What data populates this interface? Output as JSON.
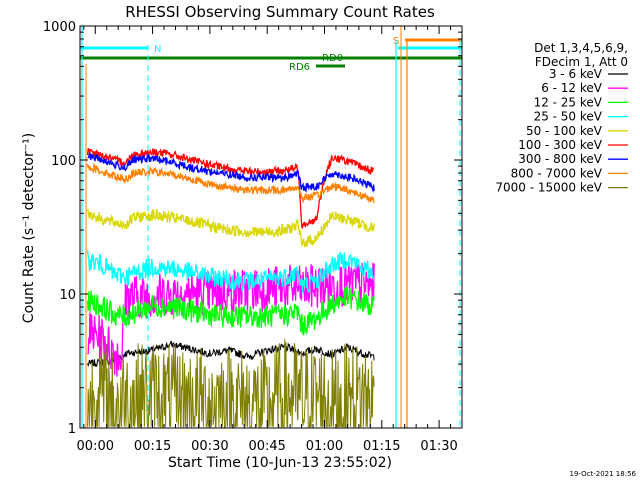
{
  "chart_data": {
    "type": "line",
    "title": "RHESSI Observing Summary Count Rates",
    "xlabel": "Start Time (10-Jun-13 23:55:02)",
    "ylabel": "Count Rate (s⁻¹ detector⁻¹)",
    "y_scale": "log",
    "ylim": [
      1,
      1000
    ],
    "xlim_minutes": [
      -4,
      96
    ],
    "y_ticks": [
      "1",
      "10",
      "100",
      "1000"
    ],
    "x_ticks": [
      "00:00",
      "00:15",
      "00:30",
      "00:45",
      "01:00",
      "01:15",
      "01:30"
    ],
    "legend_header": [
      "Det 1,3,4,5,6,9,",
      "FDecim 1, Att 0"
    ],
    "legend_position": "right",
    "series": [
      {
        "name": "3 - 6 keV",
        "color": "#000000",
        "x": [
          -2,
          5,
          8,
          15,
          20,
          25,
          30,
          35,
          40,
          45,
          50,
          54,
          58,
          62,
          66,
          70,
          73
        ],
        "values": [
          3.0,
          3.2,
          3.6,
          3.8,
          4.2,
          3.9,
          3.6,
          3.8,
          3.4,
          3.8,
          4.0,
          3.6,
          3.9,
          3.5,
          4.0,
          3.6,
          3.4
        ]
      },
      {
        "name": "6 - 12 keV",
        "color": "#ff00ff",
        "x": [
          -2,
          2,
          5,
          7,
          8,
          15,
          25,
          35,
          45,
          50,
          54,
          58,
          62,
          66,
          70,
          73
        ],
        "values": [
          5.2,
          4.6,
          3.6,
          3.5,
          9.5,
          9.8,
          10.2,
          10.5,
          11.0,
          11.2,
          11.0,
          11.4,
          11.6,
          12.0,
          11.8,
          11.5
        ]
      },
      {
        "name": "12 - 25 keV",
        "color": "#00ff00",
        "x": [
          -2,
          2,
          5,
          8,
          15,
          20,
          25,
          30,
          35,
          40,
          45,
          50,
          53,
          54,
          58,
          62,
          66,
          70,
          73
        ],
        "values": [
          9.0,
          8.0,
          7.0,
          6.8,
          8.2,
          8.0,
          7.5,
          7.0,
          6.8,
          6.8,
          6.8,
          7.0,
          7.4,
          5.8,
          6.6,
          8.5,
          9.5,
          8.6,
          8.0
        ]
      },
      {
        "name": "25 - 50 keV",
        "color": "#00ffff",
        "x": [
          -2,
          2,
          5,
          8,
          15,
          20,
          25,
          30,
          35,
          40,
          45,
          50,
          53,
          54,
          58,
          62,
          66,
          70,
          73
        ],
        "values": [
          18.0,
          16.5,
          14.0,
          13.5,
          16.0,
          15.5,
          14.5,
          13.5,
          12.8,
          12.5,
          12.8,
          13.5,
          14.5,
          11.5,
          12.5,
          16.5,
          18.5,
          15.5,
          14.5
        ]
      },
      {
        "name": "50 - 100 keV",
        "color": "#d8d800",
        "x": [
          -2,
          2,
          5,
          8,
          10,
          15,
          20,
          25,
          30,
          35,
          40,
          45,
          50,
          53,
          54,
          58,
          62,
          66,
          70,
          73
        ],
        "values": [
          40.0,
          36.0,
          34.0,
          33.0,
          37.0,
          39.0,
          37.0,
          35.0,
          32.0,
          30.0,
          29.0,
          29.0,
          30.0,
          33.0,
          24.0,
          26.0,
          38.0,
          36.0,
          33.0,
          31.0
        ]
      },
      {
        "name": "100 - 300 keV",
        "color": "#ff0000",
        "x": [
          -2,
          2,
          5,
          8,
          10,
          15,
          20,
          25,
          30,
          35,
          40,
          45,
          50,
          53,
          54,
          58,
          62,
          66,
          70,
          73
        ],
        "values": [
          115.0,
          108.0,
          100.0,
          96.0,
          110.0,
          115.0,
          110.0,
          100.0,
          92.0,
          86.0,
          82.0,
          82.0,
          84.0,
          88.0,
          33.0,
          36.0,
          105.0,
          98.0,
          88.0,
          82.0
        ]
      },
      {
        "name": "300 - 800 keV",
        "color": "#0000ff",
        "x": [
          -2,
          2,
          5,
          8,
          10,
          15,
          20,
          25,
          30,
          35,
          40,
          45,
          50,
          53,
          54,
          58,
          62,
          66,
          70,
          73
        ],
        "values": [
          108.0,
          100.0,
          92.0,
          88.0,
          100.0,
          103.0,
          96.0,
          88.0,
          82.0,
          78.0,
          74.0,
          74.0,
          74.0,
          80.0,
          62.0,
          64.0,
          80.0,
          75.0,
          68.0,
          62.0
        ]
      },
      {
        "name": "800 - 7000 keV",
        "color": "#ff8000",
        "x": [
          -2,
          2,
          5,
          8,
          10,
          15,
          20,
          25,
          30,
          35,
          40,
          45,
          50,
          53,
          54,
          58,
          62,
          66,
          70,
          73
        ],
        "values": [
          90.0,
          82.0,
          76.0,
          72.0,
          80.0,
          82.0,
          78.0,
          72.0,
          66.0,
          62.0,
          60.0,
          59.0,
          60.0,
          63.0,
          52.0,
          54.0,
          64.0,
          60.0,
          54.0,
          50.0
        ]
      },
      {
        "name": "7000 - 15000 keV",
        "color": "#808000",
        "x": [
          -2,
          2,
          5,
          8,
          15,
          25,
          35,
          45,
          50,
          54,
          58,
          62,
          66,
          70,
          73
        ],
        "values": [
          1.5,
          1.8,
          1.4,
          1.6,
          1.7,
          1.5,
          1.6,
          1.4,
          1.8,
          1.6,
          1.7,
          1.5,
          1.6,
          1.7,
          1.5
        ]
      }
    ],
    "annotations": {
      "saa_label": "N",
      "flag_label": "S",
      "rd0_label": "RD0",
      "rd6_label": "RD6",
      "timestamp": "19-Oct-2021 18:56"
    }
  }
}
